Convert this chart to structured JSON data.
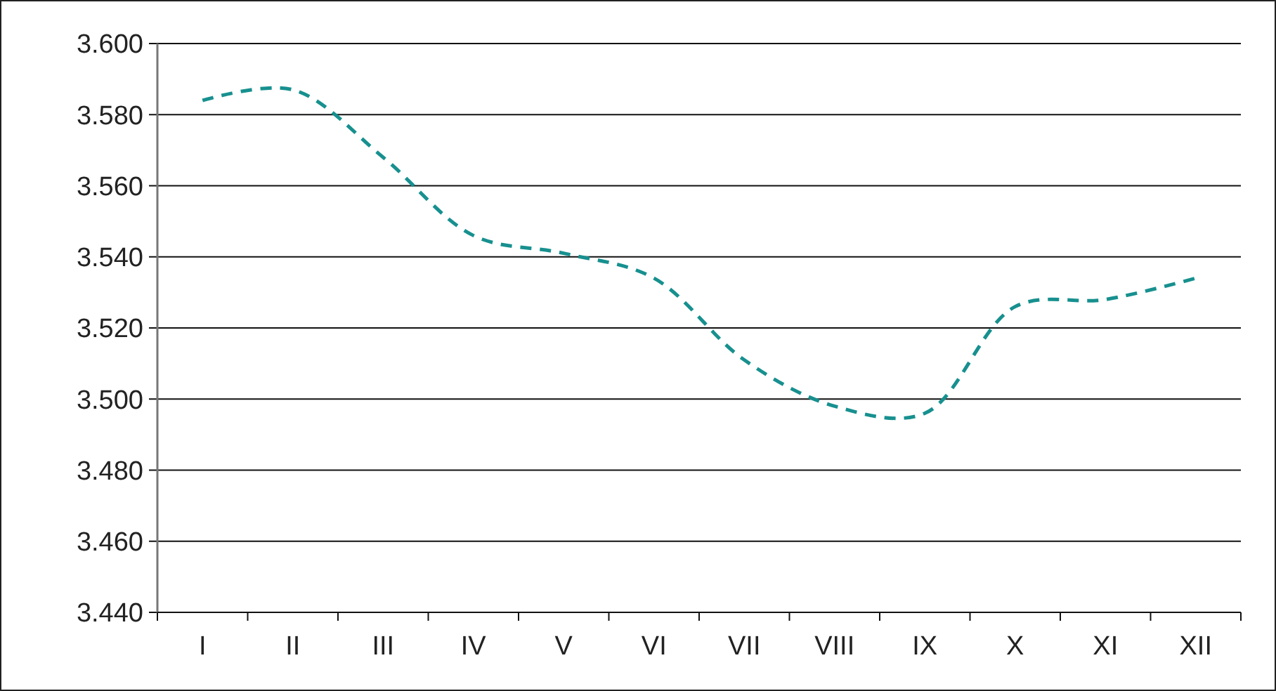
{
  "chart_data": {
    "type": "line",
    "categories": [
      "I",
      "II",
      "III",
      "IV",
      "V",
      "VI",
      "VII",
      "VIII",
      "IX",
      "X",
      "XI",
      "XII"
    ],
    "series": [
      {
        "color": "#17908f",
        "values": [
          3584,
          3587,
          3568,
          3546,
          3541,
          3534,
          3511,
          3498,
          3496,
          3526,
          3528,
          3534
        ]
      }
    ],
    "ylim": [
      3440,
      3600
    ],
    "yticks": [
      {
        "value": 3440,
        "label": "3.440"
      },
      {
        "value": 3460,
        "label": "3.460"
      },
      {
        "value": 3480,
        "label": "3.480"
      },
      {
        "value": 3500,
        "label": "3.500"
      },
      {
        "value": 3520,
        "label": "3.520"
      },
      {
        "value": 3540,
        "label": "3.540"
      },
      {
        "value": 3560,
        "label": "3.560"
      },
      {
        "value": 3580,
        "label": "3.580"
      },
      {
        "value": 3600,
        "label": "3.600"
      }
    ],
    "grid": "y",
    "marker": "none",
    "line_style": "dashed"
  }
}
